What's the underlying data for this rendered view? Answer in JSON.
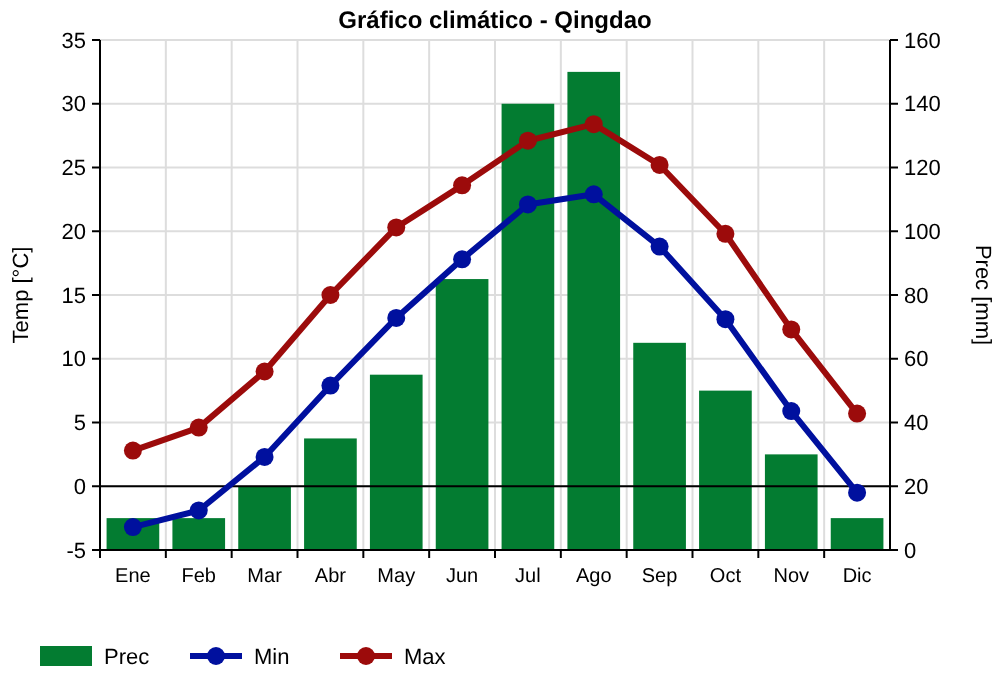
{
  "chart_data": {
    "type": "bar",
    "title": "Gráfico climático - Qingdao",
    "ylabel": "Temp [°C]",
    "y2label": "Prec [mm]",
    "categories": [
      "Ene",
      "Feb",
      "Mar",
      "Abr",
      "May",
      "Jun",
      "Jul",
      "Ago",
      "Sep",
      "Oct",
      "Nov",
      "Dic"
    ],
    "series": [
      {
        "name": "Prec",
        "axis": "y2",
        "color": "#037c31",
        "values": [
          10,
          10,
          20,
          35,
          55,
          85,
          140,
          150,
          65,
          50,
          30,
          10
        ]
      },
      {
        "name": "Min",
        "type": "line",
        "color": "#00109e",
        "values": [
          -3.2,
          -1.9,
          2.3,
          7.9,
          13.2,
          17.8,
          22.1,
          22.9,
          18.8,
          13.1,
          5.9,
          -0.5
        ]
      },
      {
        "name": "Max",
        "type": "line",
        "color": "#9c0b0b",
        "values": [
          2.8,
          4.6,
          9.0,
          15.0,
          20.3,
          23.6,
          27.1,
          28.4,
          25.2,
          19.8,
          12.3,
          5.7
        ]
      }
    ],
    "ylim": [
      -5,
      35
    ],
    "yticks": [
      -5,
      0,
      5,
      10,
      15,
      20,
      25,
      30,
      35
    ],
    "y2lim": [
      0,
      160
    ],
    "y2ticks": [
      0,
      20,
      40,
      60,
      80,
      100,
      120,
      140,
      160
    ],
    "ref_lines": [
      {
        "axis": "y",
        "value": 0,
        "color": "#000000"
      }
    ],
    "grid": true,
    "legend": "bottom left",
    "marker": "circle"
  }
}
